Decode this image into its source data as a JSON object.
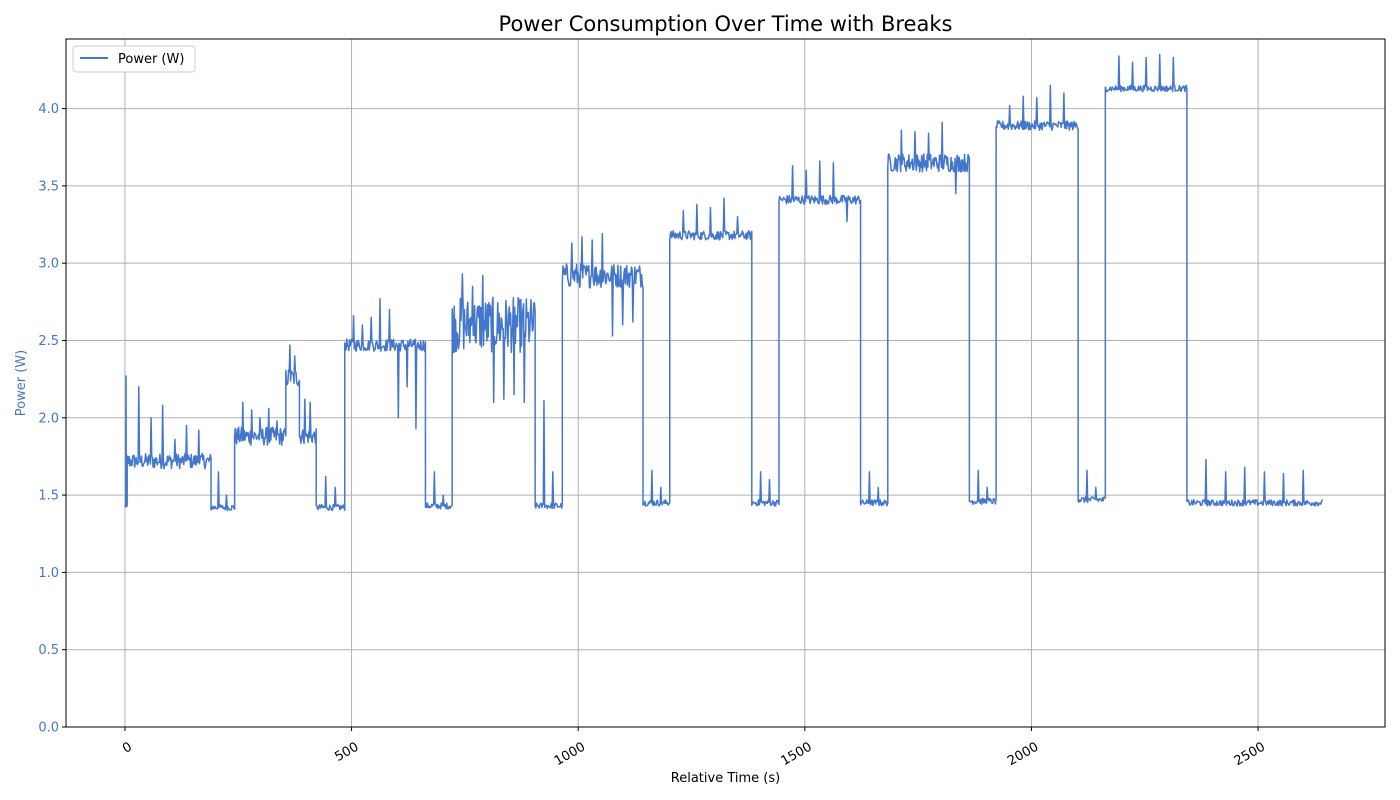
{
  "chart_data": {
    "type": "line",
    "title": "Power Consumption Over Time with Breaks",
    "xlabel": "Relative Time (s)",
    "ylabel": "Power (W)",
    "xlim": [
      -130,
      2780
    ],
    "ylim": [
      0.0,
      4.45
    ],
    "xticks": [
      0,
      500,
      1000,
      1500,
      2000,
      2500
    ],
    "xtick_labels": [
      "0",
      "500",
      "1000",
      "1500",
      "2000",
      "2500"
    ],
    "yticks": [
      0.0,
      0.5,
      1.0,
      1.5,
      2.0,
      2.5,
      3.0,
      3.5,
      4.0
    ],
    "ytick_labels": [
      "0.0",
      "0.5",
      "1.0",
      "1.5",
      "2.0",
      "2.5",
      "3.0",
      "3.5",
      "4.0"
    ],
    "grid": true,
    "legend_position": "top-left",
    "colors": {
      "series": "#4477cc",
      "ylabel": "#4477cc",
      "axis": "#000000",
      "grid": "#b0b0b0"
    },
    "series": [
      {
        "name": "Power (W)",
        "segments": [
          {
            "start": 0,
            "end": 5,
            "level": 1.43,
            "noise": 0.01,
            "spikes": [
              2.27
            ]
          },
          {
            "start": 5,
            "end": 190,
            "level": 1.72,
            "noise": 0.05,
            "spikes": [
              2.2,
              2.0,
              2.08,
              1.86,
              1.95,
              1.92
            ]
          },
          {
            "start": 190,
            "end": 242,
            "level": 1.42,
            "noise": 0.02,
            "spikes": [
              1.65,
              1.5
            ]
          },
          {
            "start": 242,
            "end": 355,
            "level": 1.88,
            "noise": 0.06,
            "spikes": [
              2.1,
              2.05,
              2.0,
              2.06,
              1.98
            ]
          },
          {
            "start": 355,
            "end": 385,
            "level": 2.26,
            "noise": 0.06,
            "spikes": [
              2.47,
              2.4
            ]
          },
          {
            "start": 385,
            "end": 422,
            "level": 1.88,
            "noise": 0.05,
            "spikes": [
              2.12,
              2.1
            ]
          },
          {
            "start": 422,
            "end": 485,
            "level": 1.42,
            "noise": 0.02,
            "spikes": [
              1.62,
              1.55
            ]
          },
          {
            "start": 485,
            "end": 663,
            "level": 2.47,
            "noise": 0.04,
            "spikes": [
              2.66,
              2.6,
              2.65,
              2.77,
              2.7,
              2.0,
              2.2,
              1.93
            ]
          },
          {
            "start": 663,
            "end": 722,
            "level": 1.43,
            "noise": 0.02,
            "spikes": [
              1.65,
              1.5
            ]
          },
          {
            "start": 722,
            "end": 905,
            "level": 2.6,
            "noise": 0.18,
            "spikes": [
              2.93,
              2.85,
              2.92,
              2.1,
              2.12,
              2.15,
              2.1
            ]
          },
          {
            "start": 905,
            "end": 965,
            "level": 1.43,
            "noise": 0.02,
            "spikes": [
              2.11,
              1.65
            ]
          },
          {
            "start": 965,
            "end": 1143,
            "level": 2.92,
            "noise": 0.08,
            "spikes": [
              3.13,
              3.17,
              3.15,
              3.19,
              2.53,
              2.6,
              2.62
            ]
          },
          {
            "start": 1143,
            "end": 1202,
            "level": 1.45,
            "noise": 0.02,
            "spikes": [
              1.66,
              1.55
            ]
          },
          {
            "start": 1202,
            "end": 1383,
            "level": 3.18,
            "noise": 0.03,
            "spikes": [
              3.34,
              3.38,
              3.36,
              3.42,
              3.3
            ]
          },
          {
            "start": 1383,
            "end": 1443,
            "level": 1.45,
            "noise": 0.02,
            "spikes": [
              1.65,
              1.6
            ]
          },
          {
            "start": 1443,
            "end": 1623,
            "level": 3.41,
            "noise": 0.03,
            "spikes": [
              3.63,
              3.6,
              3.66,
              3.65,
              3.27
            ]
          },
          {
            "start": 1623,
            "end": 1683,
            "level": 1.45,
            "noise": 0.02,
            "spikes": [
              1.65,
              1.55
            ]
          },
          {
            "start": 1683,
            "end": 1863,
            "level": 3.65,
            "noise": 0.06,
            "spikes": [
              3.86,
              3.85,
              3.84,
              3.91,
              3.45
            ]
          },
          {
            "start": 1863,
            "end": 1922,
            "level": 1.46,
            "noise": 0.02,
            "spikes": [
              1.66,
              1.55
            ]
          },
          {
            "start": 1922,
            "end": 2103,
            "level": 3.89,
            "noise": 0.03,
            "spikes": [
              4.02,
              4.08,
              4.07,
              4.15,
              4.1
            ]
          },
          {
            "start": 2103,
            "end": 2163,
            "level": 1.47,
            "noise": 0.02,
            "spikes": [
              1.66,
              1.55
            ]
          },
          {
            "start": 2163,
            "end": 2343,
            "level": 4.13,
            "noise": 0.02,
            "spikes": [
              4.34,
              4.3,
              4.33,
              4.35,
              4.33
            ]
          },
          {
            "start": 2343,
            "end": 2643,
            "level": 1.45,
            "noise": 0.02,
            "spikes": [
              1.73,
              1.65,
              1.68,
              1.65,
              1.64,
              1.66
            ]
          }
        ]
      }
    ]
  }
}
